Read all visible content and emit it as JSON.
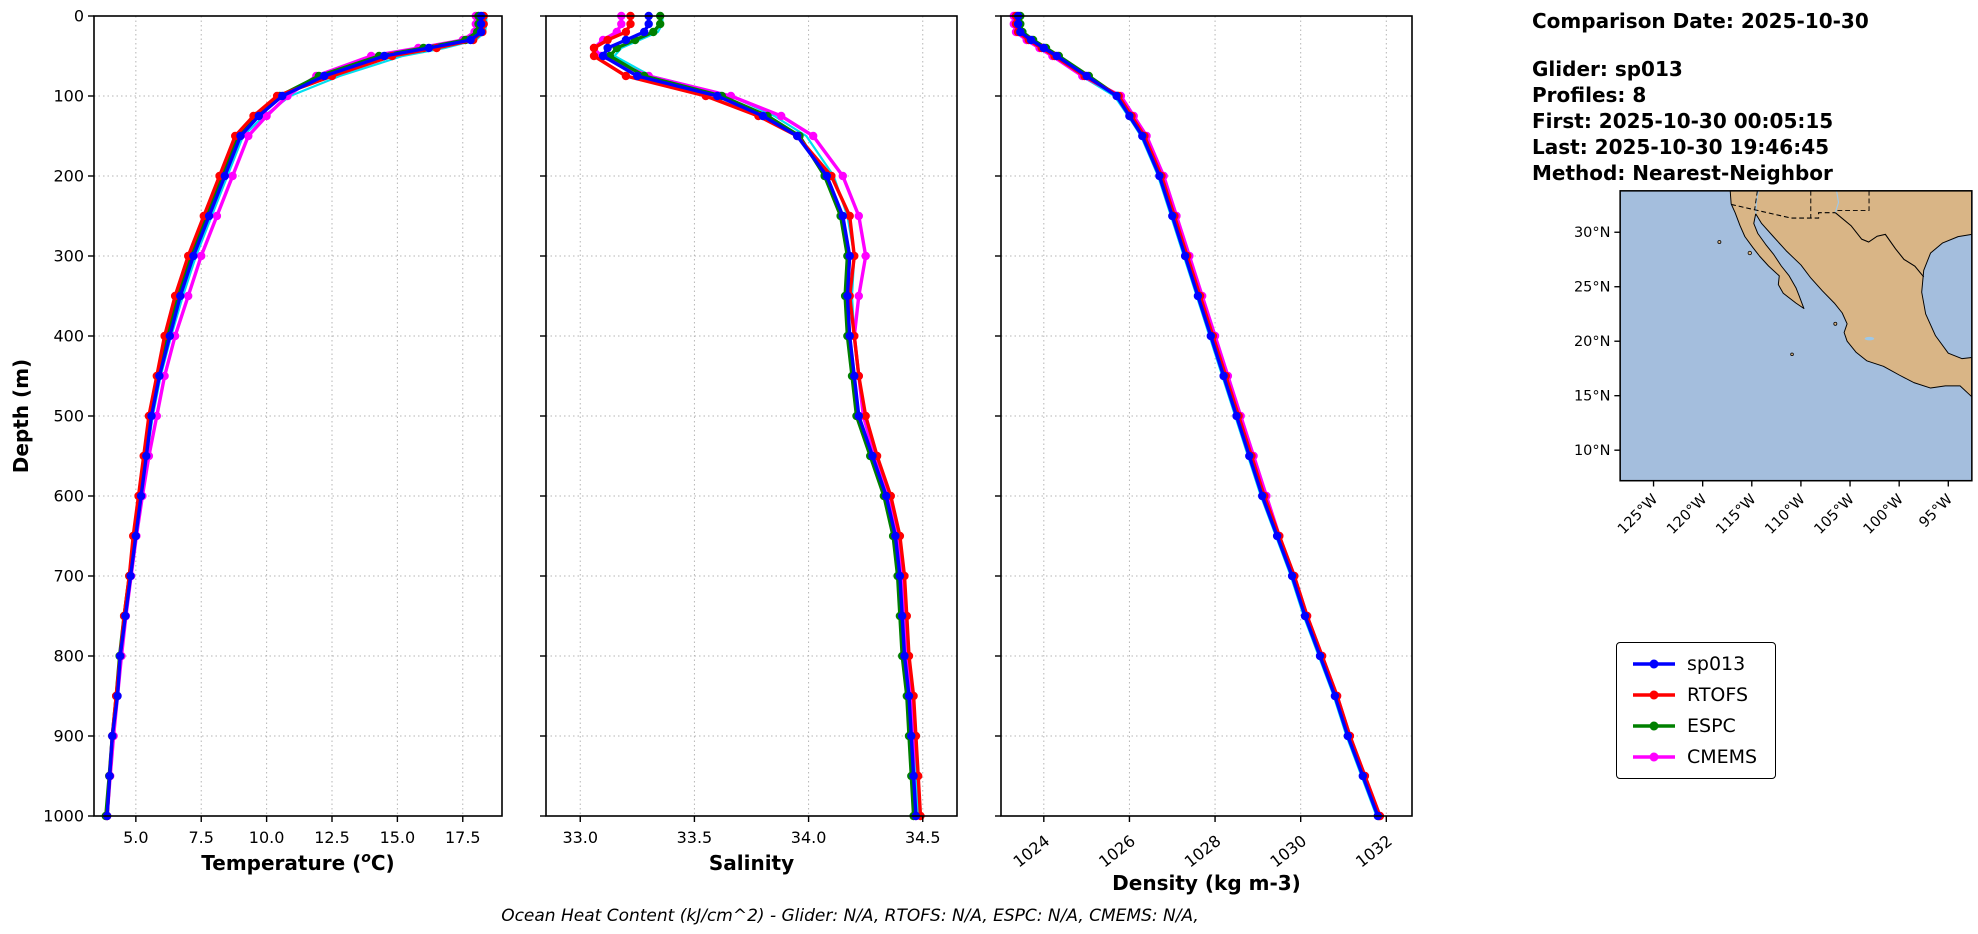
{
  "info_panel": {
    "comparison_date": "Comparison Date: 2025-10-30",
    "glider": "Glider: sp013",
    "profiles": "Profiles: 8",
    "first": "First: 2025-10-30 00:05:15",
    "last": "Last: 2025-10-30 19:46:45",
    "method": "Method: Nearest-Neighbor"
  },
  "footer_note": "Ocean Heat Content (kJ/cm^2) - Glider: N/A,  RTOFS: N/A,  ESPC: N/A,  CMEMS: N/A,",
  "ylabel": "Depth (m)",
  "legend": {
    "entries": [
      {
        "label": "sp013",
        "color": "#0000ff"
      },
      {
        "label": "RTOFS",
        "color": "#ff0000"
      },
      {
        "label": "ESPC",
        "color": "#008000"
      },
      {
        "label": "CMEMS",
        "color": "#ff00ff"
      }
    ]
  },
  "map": {
    "land_color": "#d9b586",
    "ocean_color": "#a4bedd",
    "coast_color": "#000000",
    "river_color": "#9ec8e8",
    "lat_ticks": [
      30,
      25,
      20,
      15,
      10
    ],
    "lat_tick_labels": [
      "30°N",
      "25°N",
      "20°N",
      "15°N",
      "10°N"
    ],
    "lon_ticks": [
      -125,
      -120,
      -115,
      -110,
      -105,
      -100,
      -95
    ],
    "lon_tick_labels": [
      "125°W",
      "120°W",
      "115°W",
      "110°W",
      "105°W",
      "100°W",
      "95°W"
    ]
  },
  "chart_data": [
    {
      "type": "line",
      "profile": "temperature",
      "xlabel": "Temperature (°C)",
      "xlim": [
        3.4,
        19.0
      ],
      "xticks": [
        5.0,
        7.5,
        10.0,
        12.5,
        15.0,
        17.5
      ],
      "xtick_labels": [
        "5.0",
        "7.5",
        "10.0",
        "12.5",
        "15.0",
        "17.5"
      ],
      "rotate_xticks": false,
      "ylim": [
        0,
        1000
      ],
      "yticks": [
        0,
        100,
        200,
        300,
        400,
        500,
        600,
        700,
        800,
        900,
        1000
      ],
      "grid": true,
      "depths": [
        0,
        10,
        20,
        30,
        40,
        50,
        75,
        100,
        125,
        150,
        200,
        250,
        300,
        350,
        400,
        450,
        500,
        550,
        600,
        650,
        700,
        750,
        800,
        850,
        900,
        950,
        1000
      ],
      "background_series": [
        {
          "name": "glider-profiles",
          "color": "#00dff0",
          "values": [
            18.4,
            18.4,
            18.35,
            18.0,
            16.8,
            15.2,
            12.8,
            10.9,
            9.9,
            9.1,
            8.5,
            7.9,
            7.3,
            6.8,
            6.35,
            5.95,
            5.65,
            5.42,
            5.22,
            5.02,
            4.82,
            4.62,
            4.42,
            4.3,
            4.12,
            4.0,
            3.9
          ]
        }
      ],
      "series": [
        {
          "name": "CMEMS",
          "color": "#ff00ff",
          "values": [
            18.0,
            18.0,
            17.95,
            17.5,
            15.8,
            14.0,
            11.9,
            10.8,
            10.0,
            9.3,
            8.7,
            8.1,
            7.5,
            7.0,
            6.5,
            6.1,
            5.8,
            5.5,
            5.25,
            5.02,
            4.82,
            4.62,
            4.45,
            4.3,
            4.15,
            4.02,
            3.9
          ]
        },
        {
          "name": "ESPC",
          "color": "#008000",
          "values": [
            18.1,
            18.1,
            18.05,
            17.6,
            16.0,
            14.3,
            12.0,
            10.5,
            9.6,
            8.9,
            8.3,
            7.7,
            7.1,
            6.6,
            6.2,
            5.85,
            5.55,
            5.35,
            5.15,
            4.95,
            4.75,
            4.55,
            4.38,
            4.25,
            4.1,
            3.98,
            3.85
          ]
        },
        {
          "name": "RTOFS",
          "color": "#ff0000",
          "values": [
            18.3,
            18.3,
            18.25,
            17.9,
            16.5,
            14.8,
            12.5,
            10.4,
            9.5,
            8.8,
            8.2,
            7.6,
            7.0,
            6.5,
            6.1,
            5.8,
            5.5,
            5.3,
            5.1,
            4.9,
            4.75,
            4.55,
            4.4,
            4.25,
            4.1,
            4.0,
            3.9
          ]
        },
        {
          "name": "sp013",
          "color": "#0000ff",
          "values": [
            18.2,
            18.2,
            18.2,
            17.8,
            16.2,
            14.5,
            12.2,
            10.6,
            9.7,
            9.0,
            8.4,
            7.8,
            7.2,
            6.7,
            6.3,
            5.9,
            5.6,
            5.4,
            5.2,
            5.0,
            4.8,
            4.6,
            4.4,
            4.3,
            4.1,
            4.0,
            3.9
          ]
        }
      ]
    },
    {
      "type": "line",
      "profile": "salinity",
      "xlabel": "Salinity",
      "xlim": [
        32.85,
        34.65
      ],
      "xticks": [
        33.0,
        33.5,
        34.0,
        34.5
      ],
      "xtick_labels": [
        "33.0",
        "33.5",
        "34.0",
        "34.5"
      ],
      "rotate_xticks": false,
      "ylim": [
        0,
        1000
      ],
      "yticks": [
        0,
        100,
        200,
        300,
        400,
        500,
        600,
        700,
        800,
        900,
        1000
      ],
      "grid": true,
      "depths": [
        0,
        10,
        20,
        30,
        40,
        50,
        75,
        100,
        125,
        150,
        200,
        250,
        300,
        350,
        400,
        450,
        500,
        550,
        600,
        650,
        700,
        750,
        800,
        850,
        900,
        950,
        1000
      ],
      "background_series": [
        {
          "name": "glider-profiles",
          "color": "#00dff0",
          "values": [
            33.36,
            33.36,
            33.34,
            33.26,
            33.18,
            33.15,
            33.31,
            33.66,
            33.85,
            33.99,
            34.11,
            34.17,
            34.2,
            34.19,
            34.2,
            34.22,
            34.24,
            34.29,
            34.35,
            34.39,
            34.41,
            34.42,
            34.43,
            34.45,
            34.46,
            34.47,
            34.48
          ]
        }
      ],
      "series": [
        {
          "name": "CMEMS",
          "color": "#ff00ff",
          "values": [
            33.18,
            33.18,
            33.16,
            33.1,
            33.06,
            33.09,
            33.3,
            33.66,
            33.88,
            34.02,
            34.15,
            34.22,
            34.25,
            34.22,
            34.2,
            34.22,
            34.24,
            34.29,
            34.35,
            34.39,
            34.41,
            34.42,
            34.43,
            34.45,
            34.46,
            34.46,
            34.47
          ]
        },
        {
          "name": "ESPC",
          "color": "#008000",
          "values": [
            33.35,
            33.35,
            33.32,
            33.24,
            33.16,
            33.13,
            33.28,
            33.62,
            33.82,
            33.96,
            34.07,
            34.14,
            34.17,
            34.16,
            34.17,
            34.19,
            34.21,
            34.27,
            34.33,
            34.37,
            34.39,
            34.4,
            34.41,
            34.43,
            34.44,
            34.45,
            34.46
          ]
        },
        {
          "name": "RTOFS",
          "color": "#ff0000",
          "values": [
            33.22,
            33.22,
            33.2,
            33.12,
            33.06,
            33.06,
            33.2,
            33.55,
            33.78,
            33.95,
            34.1,
            34.18,
            34.2,
            34.18,
            34.2,
            34.22,
            34.25,
            34.3,
            34.36,
            34.4,
            34.42,
            34.43,
            34.44,
            34.46,
            34.47,
            34.48,
            34.49
          ]
        },
        {
          "name": "sp013",
          "color": "#0000ff",
          "values": [
            33.3,
            33.3,
            33.28,
            33.2,
            33.12,
            33.1,
            33.25,
            33.6,
            33.8,
            33.95,
            34.08,
            34.15,
            34.18,
            34.17,
            34.18,
            34.2,
            34.22,
            34.28,
            34.34,
            34.38,
            34.4,
            34.41,
            34.42,
            34.44,
            34.45,
            34.46,
            34.47
          ]
        }
      ]
    },
    {
      "type": "line",
      "profile": "density",
      "xlabel": "Density (kg m-3)",
      "xlim": [
        1023.0,
        1032.6
      ],
      "xticks": [
        1024,
        1026,
        1028,
        1030,
        1032
      ],
      "xtick_labels": [
        "1024",
        "1026",
        "1028",
        "1030",
        "1032"
      ],
      "rotate_xticks": true,
      "ylim": [
        0,
        1000
      ],
      "yticks": [
        0,
        100,
        200,
        300,
        400,
        500,
        600,
        700,
        800,
        900,
        1000
      ],
      "grid": true,
      "depths": [
        0,
        10,
        20,
        30,
        40,
        50,
        75,
        100,
        125,
        150,
        200,
        250,
        300,
        350,
        400,
        450,
        500,
        550,
        600,
        650,
        700,
        750,
        800,
        850,
        900,
        950,
        1000
      ],
      "background_series": [
        {
          "name": "glider-profiles",
          "color": "#00dff0",
          "values": [
            1023.3,
            1023.3,
            1023.35,
            1023.6,
            1023.9,
            1024.2,
            1024.88,
            1025.65,
            1025.97,
            1026.27,
            1026.67,
            1026.97,
            1027.27,
            1027.57,
            1027.87,
            1028.17,
            1028.47,
            1028.77,
            1029.07,
            1029.42,
            1029.77,
            1030.07,
            1030.42,
            1030.77,
            1031.07,
            1031.42,
            1031.77
          ]
        }
      ],
      "series": [
        {
          "name": "CMEMS",
          "color": "#ff00ff",
          "values": [
            1023.3,
            1023.3,
            1023.35,
            1023.6,
            1023.9,
            1024.2,
            1024.9,
            1025.8,
            1026.1,
            1026.4,
            1026.8,
            1027.1,
            1027.4,
            1027.7,
            1028.0,
            1028.3,
            1028.6,
            1028.9,
            1029.2,
            1029.5,
            1029.85,
            1030.15,
            1030.5,
            1030.85,
            1031.15,
            1031.5,
            1031.85
          ]
        },
        {
          "name": "ESPC",
          "color": "#008000",
          "values": [
            1023.45,
            1023.45,
            1023.5,
            1023.75,
            1024.05,
            1024.35,
            1025.05,
            1025.72,
            1026.02,
            1026.32,
            1026.72,
            1027.02,
            1027.32,
            1027.62,
            1027.92,
            1028.22,
            1028.52,
            1028.82,
            1029.12,
            1029.47,
            1029.82,
            1030.12,
            1030.47,
            1030.82,
            1031.12,
            1031.47,
            1031.82
          ]
        },
        {
          "name": "RTOFS",
          "color": "#ff0000",
          "values": [
            1023.35,
            1023.35,
            1023.4,
            1023.65,
            1023.95,
            1024.25,
            1024.95,
            1025.75,
            1026.05,
            1026.35,
            1026.75,
            1027.05,
            1027.35,
            1027.65,
            1027.95,
            1028.25,
            1028.55,
            1028.85,
            1029.15,
            1029.5,
            1029.85,
            1030.15,
            1030.5,
            1030.85,
            1031.15,
            1031.5,
            1031.85
          ]
        },
        {
          "name": "sp013",
          "color": "#0000ff",
          "values": [
            1023.4,
            1023.4,
            1023.45,
            1023.7,
            1024.0,
            1024.3,
            1025.0,
            1025.7,
            1026.0,
            1026.3,
            1026.7,
            1027.0,
            1027.3,
            1027.6,
            1027.9,
            1028.2,
            1028.5,
            1028.8,
            1029.1,
            1029.45,
            1029.8,
            1030.1,
            1030.45,
            1030.8,
            1031.1,
            1031.45,
            1031.8
          ]
        }
      ]
    }
  ]
}
